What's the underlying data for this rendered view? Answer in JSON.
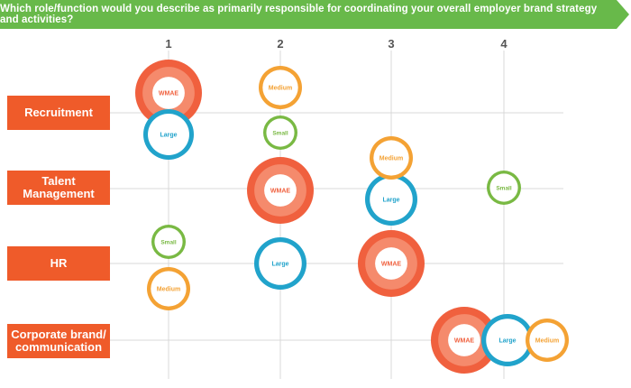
{
  "chart_data": {
    "type": "bubble",
    "title": "Which role/function would you describe as primarily responsible for coordinating your overall employer brand strategy and activities?",
    "columns": [
      "1",
      "2",
      "3",
      "4"
    ],
    "rows": [
      "Recruitment",
      "Talent\nManagement",
      "HR",
      "Corporate brand/\ncommunication"
    ],
    "series": [
      {
        "name": "WMAE",
        "color": "#f0603e",
        "ring": "#f58a6c",
        "points": [
          {
            "column": "1",
            "row": "Recruitment"
          },
          {
            "column": "2",
            "row": "Talent\nManagement"
          },
          {
            "column": "3",
            "row": "HR"
          },
          {
            "column": "4",
            "row": "Corporate brand/\ncommunication"
          }
        ]
      },
      {
        "name": "Large",
        "color": "#21a3cb",
        "ring": "#ffffff",
        "points": [
          {
            "column": "1",
            "row": "Recruitment"
          },
          {
            "column": "3",
            "row": "Talent\nManagement"
          },
          {
            "column": "2",
            "row": "HR"
          },
          {
            "column": "4",
            "row": "Corporate brand/\ncommunication"
          }
        ]
      },
      {
        "name": "Medium",
        "color": "#f4a234",
        "ring": "#ffffff",
        "points": [
          {
            "column": "2",
            "row": "Recruitment"
          },
          {
            "column": "3",
            "row": "Talent\nManagement"
          },
          {
            "column": "1",
            "row": "HR"
          },
          {
            "column": "4",
            "row": "Corporate brand/\ncommunication"
          }
        ]
      },
      {
        "name": "Small",
        "color": "#79b943",
        "ring": "#ffffff",
        "points": [
          {
            "column": "2",
            "row": "Recruitment"
          },
          {
            "column": "4",
            "row": "Talent\nManagement"
          },
          {
            "column": "1",
            "row": "HR"
          }
        ]
      }
    ],
    "colors": {
      "banner": "#68b94a",
      "row_label": "#ef5b2a",
      "grid": "#d8d8d8"
    },
    "grid": true
  }
}
